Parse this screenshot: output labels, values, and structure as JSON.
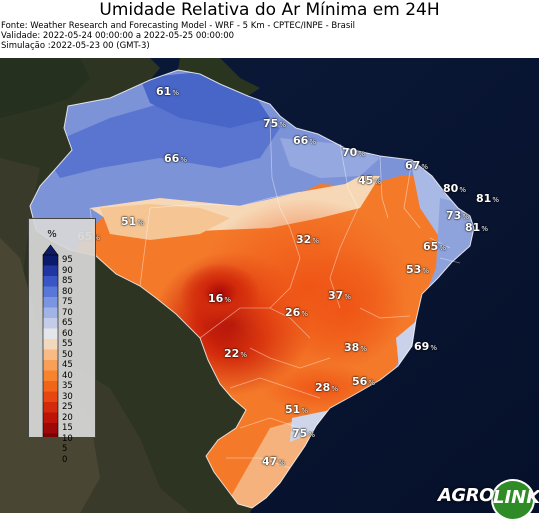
{
  "header": {
    "title": "Umidade Relativa do Ar Mínima em 24H",
    "source": "Fonte: Weather Research and Forecasting Model - WRF - 5 Km - CPTEC/INPE - Brasil",
    "validity": "Validade: 2022-05-24 00:00:00 a 2022-05-25 00:00:00",
    "simulation": "Simulação :2022-05-23 00 (GMT-3)"
  },
  "legend": {
    "unit": "%",
    "ticks": [
      "95",
      "90",
      "85",
      "80",
      "75",
      "70",
      "65",
      "60",
      "55",
      "50",
      "45",
      "40",
      "35",
      "30",
      "25",
      "20",
      "15",
      "10",
      "5",
      "0"
    ],
    "colors": {
      "95": "#0c1a6b",
      "90": "#2136a0",
      "85": "#3a56c6",
      "80": "#5877d8",
      "75": "#7c95e0",
      "70": "#a2b3e6",
      "65": "#c3cde9",
      "60": "#e4e6ea",
      "55": "#f2d8bd",
      "50": "#f8bb85",
      "45": "#fa9f57",
      "40": "#f8832f",
      "35": "#f26518",
      "30": "#e84610",
      "25": "#d42a0c",
      "20": "#bc1409",
      "15": "#9e0807",
      "10": "#7c0405",
      "5": "#560203",
      "0": "#350102"
    }
  },
  "labels": [
    {
      "id": "n1",
      "value": "61"
    },
    {
      "id": "n2",
      "value": "75"
    },
    {
      "id": "n3",
      "value": "66"
    },
    {
      "id": "n4",
      "value": "66"
    },
    {
      "id": "n5",
      "value": "70"
    },
    {
      "id": "n6",
      "value": "67"
    },
    {
      "id": "n7",
      "value": "45"
    },
    {
      "id": "n8",
      "value": "80"
    },
    {
      "id": "n9",
      "value": "81"
    },
    {
      "id": "n10",
      "value": "73"
    },
    {
      "id": "n11",
      "value": "81"
    },
    {
      "id": "n12",
      "value": "51"
    },
    {
      "id": "n13",
      "value": "65"
    },
    {
      "id": "n14",
      "value": "32"
    },
    {
      "id": "n15",
      "value": "65"
    },
    {
      "id": "n16",
      "value": "53"
    },
    {
      "id": "n17",
      "value": "16"
    },
    {
      "id": "n18",
      "value": "37"
    },
    {
      "id": "n19",
      "value": "26"
    },
    {
      "id": "n20",
      "value": "69"
    },
    {
      "id": "n21",
      "value": "38"
    },
    {
      "id": "n22",
      "value": "22"
    },
    {
      "id": "n23",
      "value": "56"
    },
    {
      "id": "n24",
      "value": "28"
    },
    {
      "id": "n25",
      "value": "51"
    },
    {
      "id": "n26",
      "value": "75"
    },
    {
      "id": "n27",
      "value": "47"
    }
  ],
  "unit_suffix": "%",
  "logo": {
    "agro": "AGRO",
    "link": "LINK"
  }
}
